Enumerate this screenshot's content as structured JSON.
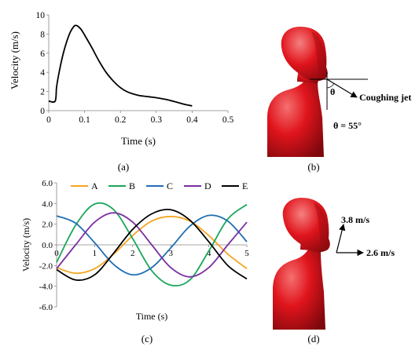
{
  "chart_data": [
    {
      "type": "line",
      "panel_label": "(a)",
      "title": "",
      "xlabel": "Time (s)",
      "ylabel": "Velocity (m/s)",
      "xlim": [
        0,
        0.5
      ],
      "ylim": [
        0,
        10
      ],
      "x_ticks": [
        "0",
        "0.1",
        "0.2",
        "0.3",
        "0.4",
        "0.5"
      ],
      "y_ticks": [
        "0",
        "2",
        "4",
        "6",
        "8",
        "10"
      ],
      "grid": false,
      "series": [
        {
          "color": "#000000",
          "x": [
            0,
            0.018,
            0.022,
            0.03,
            0.04,
            0.05,
            0.06,
            0.07,
            0.075,
            0.08,
            0.09,
            0.1,
            0.12,
            0.14,
            0.16,
            0.18,
            0.2,
            0.22,
            0.25,
            0.28,
            0.3,
            0.33,
            0.36,
            0.38,
            0.4
          ],
          "y": [
            1.0,
            1.0,
            2.5,
            4.2,
            5.9,
            7.2,
            8.2,
            8.8,
            8.9,
            8.85,
            8.5,
            7.9,
            6.6,
            5.2,
            4.0,
            3.1,
            2.4,
            1.95,
            1.6,
            1.45,
            1.35,
            1.15,
            0.85,
            0.65,
            0.5
          ]
        }
      ]
    },
    {
      "type": "line",
      "panel_label": "(c)",
      "title": "",
      "xlabel": "Time (s)",
      "ylabel": "Velocity (m/s)",
      "xlim": [
        0,
        5
      ],
      "ylim": [
        -6,
        6
      ],
      "x_ticks": [
        "0",
        "1",
        "2",
        "3",
        "4",
        "5"
      ],
      "y_ticks": [
        "6.0",
        "4.0",
        "2.0",
        "0.0",
        "-2.0",
        "-4.0",
        "-6.0"
      ],
      "legend": "top",
      "grid": false,
      "series": [
        {
          "name": "A",
          "color": "#f5a623",
          "x": [
            0,
            0.5,
            1,
            1.5,
            2,
            2.5,
            3,
            3.5,
            4,
            4.5,
            5
          ],
          "y": [
            -2.2,
            -2.75,
            -2.3,
            -0.9,
            0.9,
            2.3,
            2.75,
            2.3,
            0.9,
            -0.9,
            -2.3
          ]
        },
        {
          "name": "B",
          "color": "#1aa65a",
          "x": [
            0,
            0.5,
            1,
            1.5,
            2,
            2.5,
            3,
            3.5,
            4,
            4.5,
            5
          ],
          "y": [
            -1.7,
            1.9,
            3.95,
            3.4,
            0.6,
            -2.5,
            -3.9,
            -3.4,
            -0.6,
            2.5,
            3.9
          ]
        },
        {
          "name": "C",
          "color": "#1f6fb5",
          "x": [
            0,
            0.5,
            1,
            1.5,
            2,
            2.5,
            3,
            3.5,
            4,
            4.5,
            5
          ],
          "y": [
            2.8,
            2.1,
            0.2,
            -1.9,
            -2.9,
            -2.2,
            -0.3,
            1.8,
            2.85,
            2.3,
            0.3
          ]
        },
        {
          "name": "D",
          "color": "#7b2fa3",
          "x": [
            0,
            0.5,
            1,
            1.5,
            2,
            2.5,
            3,
            3.5,
            4,
            4.5,
            5
          ],
          "y": [
            -2.3,
            0.0,
            2.2,
            3.1,
            2.2,
            0.0,
            -2.2,
            -3.1,
            -2.2,
            0.0,
            2.2
          ]
        },
        {
          "name": "E",
          "color": "#000000",
          "x": [
            0,
            0.5,
            1,
            1.5,
            2,
            2.5,
            3,
            3.5,
            4,
            4.5,
            5
          ],
          "y": [
            -2.4,
            -3.4,
            -2.9,
            -0.8,
            1.5,
            3.0,
            3.4,
            2.4,
            0.3,
            -2.0,
            -3.3
          ]
        }
      ]
    }
  ],
  "panel_b": {
    "label": "(b)",
    "jet_label": "Coughing jet",
    "theta_symbol": "θ",
    "angle_text": "θ = 55°"
  },
  "panel_d": {
    "label": "(d)",
    "vertical_velocity": "3.8 m/s",
    "horizontal_velocity": "2.6 m/s"
  },
  "colors": {
    "mannequin": "#e0141c",
    "mannequin_dark": "#8e0a10",
    "mannequin_light": "#f06060"
  }
}
